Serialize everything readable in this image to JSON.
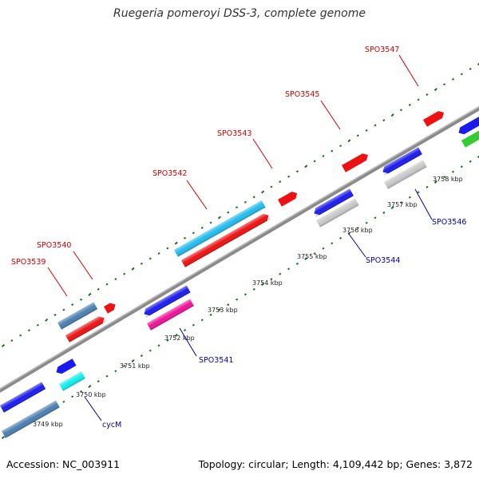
{
  "title": "Ruegeria pomeroyi DSS-3, complete genome",
  "footer": {
    "accession": "Accession: NC_003911",
    "summary": "Topology: circular; Length: 4,109,442 bp; Genes: 3,872"
  },
  "colors": {
    "backbone": "#808080",
    "tick_outer": "#1a6e1a",
    "tick_inner": "#1a6e1a",
    "label_forward": "#cc0000",
    "label_reverse": "#0000aa"
  },
  "scale_labels": [
    "3749 kbp",
    "3750 kbp",
    "3751 kbp",
    "3752 kbp",
    "3753 kbp",
    "3754 kbp",
    "3755 kbp",
    "3756 kbp",
    "3757 kbp",
    "3758 kbp"
  ],
  "gene_labels": {
    "SPO3539": "SPO3539",
    "SPO3540": "SPO3540",
    "SPO3542": "SPO3542",
    "SPO3543": "SPO3543",
    "SPO3545": "SPO3545",
    "SPO3547": "SPO3547",
    "SPO3541": "SPO3541",
    "SPO3544": "SPO3544",
    "SPO3546": "SPO3546",
    "cycM": "cycM"
  }
}
